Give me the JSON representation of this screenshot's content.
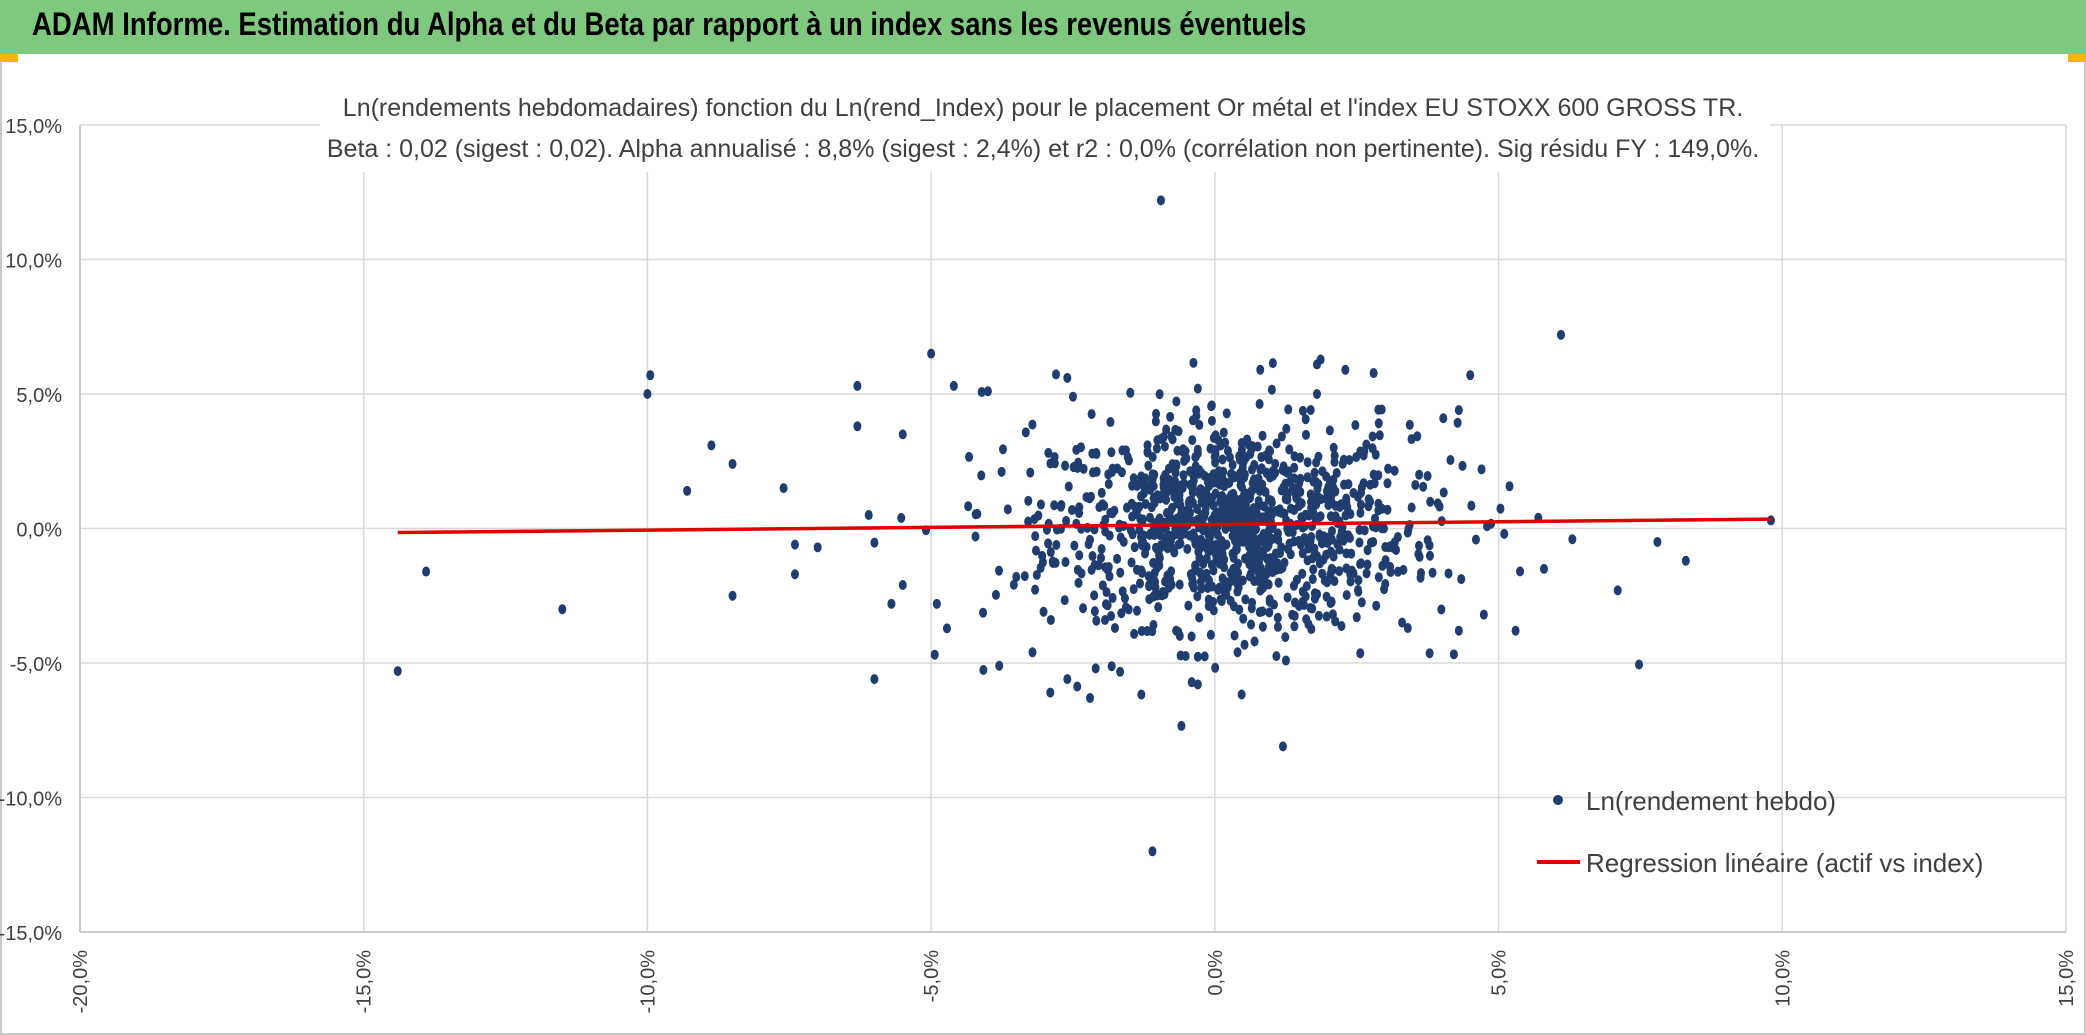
{
  "header": {
    "title": "ADAM Informe. Estimation du Alpha et du Beta par rapport à un index sans les revenus éventuels"
  },
  "colors": {
    "header_bg": "#7fc97f",
    "points": "#1f3d6e",
    "regression": "#e00000",
    "grid": "#d9d9d9"
  },
  "chart_data": {
    "type": "scatter",
    "title_line1": "Ln(rendements hebdomadaires) fonction du Ln(rend_Index) pour le placement Or métal et l'index EU STOXX 600 GROSS TR.",
    "title_line2": "Beta : 0,02 (sigest : 0,02). Alpha annualisé : 8,8% (sigest : 2,4%) et r2 : 0,0% (corrélation non pertinente). Sig résidu FY : 149,0%.",
    "xlim": [
      -20,
      15
    ],
    "ylim": [
      -15,
      15
    ],
    "x_ticks": [
      -20,
      -15,
      -10,
      -5,
      0,
      5,
      10,
      15
    ],
    "y_ticks": [
      -15,
      -10,
      -5,
      0,
      5,
      10,
      15
    ],
    "x_tick_labels": [
      "-20,0%",
      "-15,0%",
      "-10,0%",
      "-5,0%",
      "0,0%",
      "5,0%",
      "10,0%",
      "15,0%"
    ],
    "y_tick_labels": [
      "-15,0%",
      "-10,0%",
      "-5,0%",
      "0,0%",
      "5,0%",
      "10,0%",
      "15,0%"
    ],
    "grid": true,
    "legend_position": "bottom-right",
    "series": [
      {
        "name": "Ln(rendement hebdo)",
        "type": "scatter",
        "color": "#1f3d6e",
        "points": [
          [
            -14.4,
            -5.3
          ],
          [
            -13.9,
            -1.6
          ],
          [
            -11.5,
            -3.0
          ],
          [
            -10.0,
            5.0
          ],
          [
            -9.95,
            5.7
          ],
          [
            -9.3,
            1.4
          ],
          [
            -8.5,
            2.4
          ],
          [
            -8.5,
            -2.5
          ],
          [
            -7.6,
            1.5
          ],
          [
            -7.4,
            -0.6
          ],
          [
            -7.4,
            -1.7
          ],
          [
            -7.0,
            -0.7
          ],
          [
            -6.3,
            5.3
          ],
          [
            -6.3,
            3.8
          ],
          [
            -6.0,
            -5.6
          ],
          [
            -5.5,
            3.5
          ],
          [
            -5.0,
            6.5
          ],
          [
            -4.6,
            5.3
          ],
          [
            -4.0,
            5.1
          ],
          [
            -3.8,
            -5.1
          ],
          [
            -2.9,
            -6.1
          ],
          [
            -2.6,
            -5.6
          ],
          [
            -2.6,
            5.6
          ],
          [
            -2.5,
            4.9
          ],
          [
            -2.2,
            -6.3
          ],
          [
            -2.1,
            -5.2
          ],
          [
            -0.95,
            12.2
          ],
          [
            -1.1,
            -12.0
          ],
          [
            -0.3,
            5.2
          ],
          [
            -0.3,
            -5.8
          ],
          [
            0.8,
            5.9
          ],
          [
            1.2,
            -8.1
          ],
          [
            1.8,
            6.1
          ],
          [
            1.8,
            5.0
          ],
          [
            2.3,
            5.9
          ],
          [
            3.6,
            2.0
          ],
          [
            4.3,
            4.4
          ],
          [
            4.5,
            5.7
          ],
          [
            4.7,
            2.2
          ],
          [
            5.3,
            -3.8
          ],
          [
            5.8,
            -1.5
          ],
          [
            6.1,
            7.2
          ],
          [
            6.3,
            -0.4
          ],
          [
            7.1,
            -2.3
          ],
          [
            7.8,
            -0.5
          ],
          [
            8.3,
            -1.2
          ],
          [
            9.8,
            0.3
          ],
          [
            5.1,
            -0.2
          ],
          [
            5.7,
            0.4
          ],
          [
            3.3,
            -3.5
          ],
          [
            3.4,
            -3.7
          ],
          [
            4.3,
            -3.8
          ],
          [
            2.5,
            -3.3
          ],
          [
            0.7,
            -4.2
          ],
          [
            0.4,
            -4.6
          ],
          [
            -3.5,
            -1.8
          ],
          [
            -4.9,
            -2.8
          ],
          [
            -5.5,
            -2.1
          ],
          [
            -5.7,
            -2.8
          ],
          [
            -6.1,
            0.5
          ]
        ],
        "cloud": {
          "n": 1150,
          "seed": 12345,
          "center_x": 0.3,
          "center_y": 0.1,
          "sd_x": 1.55,
          "sd_y": 1.85
        }
      },
      {
        "name": "Regression linéaire (actif vs index)",
        "type": "line",
        "color": "#e00000",
        "x": [
          -14.4,
          9.8
        ],
        "y": [
          -0.15,
          0.35
        ]
      }
    ]
  }
}
